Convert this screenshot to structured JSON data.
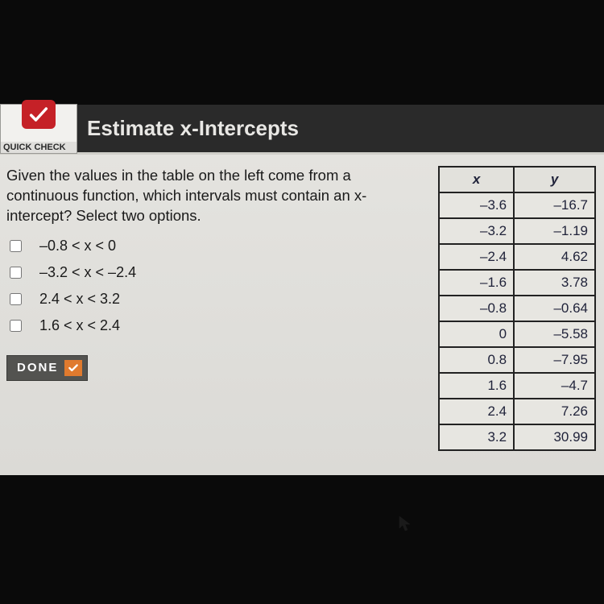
{
  "header": {
    "badge_label": "QUICK CHECK",
    "title": "Estimate x-Intercepts"
  },
  "question": "Given the values in the table on the left come from a continuous function, which intervals must contain an x-intercept? Select two options.",
  "options": [
    {
      "label": "–0.8 < x < 0"
    },
    {
      "label": "–3.2 < x < –2.4"
    },
    {
      "label": "2.4 < x < 3.2"
    },
    {
      "label": "1.6 < x < 2.4"
    }
  ],
  "done_label": "DONE",
  "table": {
    "columns": [
      "x",
      "y"
    ],
    "rows": [
      [
        "–3.6",
        "–16.7"
      ],
      [
        "–3.2",
        "–1.19"
      ],
      [
        "–2.4",
        "4.62"
      ],
      [
        "–1.6",
        "3.78"
      ],
      [
        "–0.8",
        "–0.64"
      ],
      [
        "0",
        "–5.58"
      ],
      [
        "0.8",
        "–7.95"
      ],
      [
        "1.6",
        "–4.7"
      ],
      [
        "2.4",
        "7.26"
      ],
      [
        "3.2",
        "30.99"
      ]
    ],
    "border_color": "#222222",
    "cell_bg": "#e7e6e1",
    "font_size": 17
  },
  "colors": {
    "page_bg": "#0a0a0a",
    "panel_bg": "#e0dfdc",
    "header_bg": "#2a2a2a",
    "header_text": "#e8e7e4",
    "accent_red": "#c52127",
    "done_bg": "#535350",
    "done_tick_bg": "#e07a2e"
  }
}
